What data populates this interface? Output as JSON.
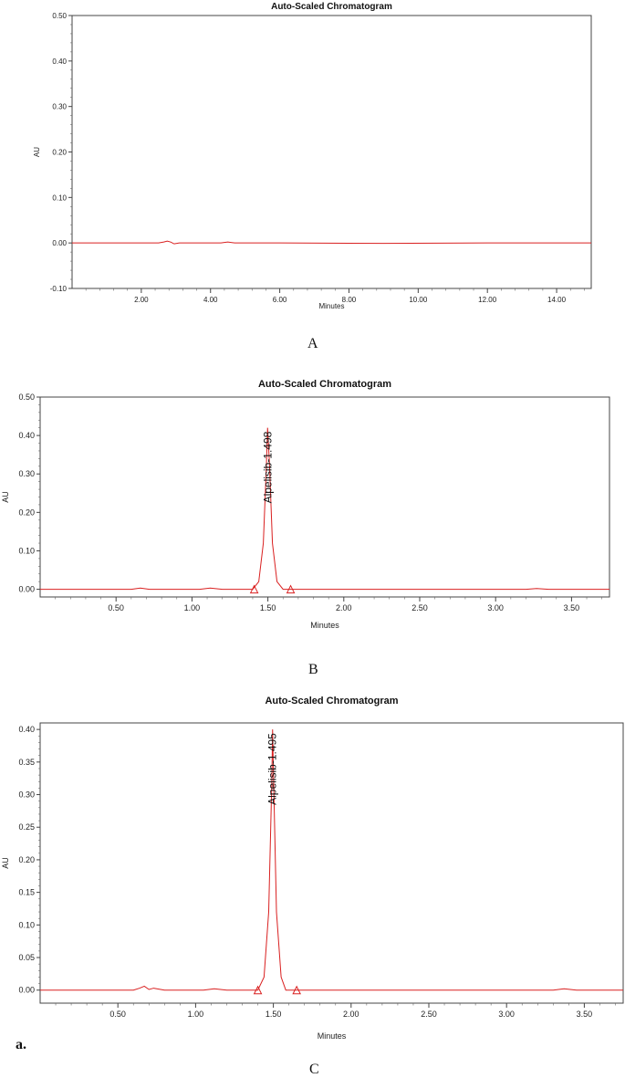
{
  "panels": [
    {
      "caption": "A"
    },
    {
      "caption": "B"
    },
    {
      "caption": "C"
    }
  ],
  "page_note": "a.",
  "chart_data": [
    {
      "type": "line",
      "title": "Auto-Scaled Chromatogram",
      "xlabel": "Minutes",
      "ylabel": "AU",
      "xlim": [
        0,
        15.0
      ],
      "ylim": [
        -0.1,
        0.5
      ],
      "xticks": [
        2,
        4,
        6,
        8,
        10,
        12,
        14
      ],
      "xtick_labels": [
        "2.00",
        "4.00",
        "6.00",
        "8.00",
        "10.00",
        "12.00",
        "14.00"
      ],
      "yticks": [
        -0.1,
        0.0,
        0.1,
        0.2,
        0.3,
        0.4,
        0.5
      ],
      "ytick_labels": [
        "-0.10",
        "0.00",
        "0.10",
        "0.20",
        "0.30",
        "0.40",
        "0.50"
      ],
      "line_color": "#d92020",
      "series": [
        {
          "x": [
            0,
            2.5,
            2.65,
            2.75,
            2.85,
            2.95,
            3.1,
            4.3,
            4.5,
            4.7,
            6,
            9,
            12,
            15
          ],
          "y": [
            0,
            0,
            0.002,
            0.004,
            0.002,
            -0.002,
            0,
            0,
            0.002,
            0,
            0,
            -0.001,
            0,
            0
          ]
        }
      ],
      "peak_labels": [],
      "baseline_markers": []
    },
    {
      "type": "line",
      "title": "Auto-Scaled Chromatogram",
      "xlabel": "Minutes",
      "ylabel": "AU",
      "xlim": [
        0,
        3.75
      ],
      "ylim": [
        -0.02,
        0.5
      ],
      "xticks": [
        0.5,
        1.0,
        1.5,
        2.0,
        2.5,
        3.0,
        3.5
      ],
      "xtick_labels": [
        "0.50",
        "1.00",
        "1.50",
        "2.00",
        "2.50",
        "3.00",
        "3.50"
      ],
      "yticks": [
        0.0,
        0.1,
        0.2,
        0.3,
        0.4,
        0.5
      ],
      "ytick_labels": [
        "0.00",
        "0.10",
        "0.20",
        "0.30",
        "0.40",
        "0.50"
      ],
      "line_color": "#d92020",
      "series": [
        {
          "x": [
            0,
            0.6,
            0.66,
            0.72,
            0.8,
            1.05,
            1.12,
            1.2,
            1.4,
            1.44,
            1.47,
            1.49,
            1.498,
            1.51,
            1.53,
            1.56,
            1.6,
            1.7,
            2.5,
            3.2,
            3.27,
            3.35,
            3.75
          ],
          "y": [
            0,
            0,
            0.003,
            0,
            0,
            0,
            0.003,
            0,
            0,
            0.02,
            0.12,
            0.32,
            0.42,
            0.33,
            0.12,
            0.02,
            0,
            0,
            0,
            0,
            0.002,
            0,
            0
          ]
        }
      ],
      "peak_labels": [
        {
          "text": "Alpelisib-1.498",
          "x": 1.498,
          "y": 0.42
        }
      ],
      "baseline_markers": [
        1.41,
        1.65
      ]
    },
    {
      "type": "line",
      "title": "Auto-Scaled Chromatogram",
      "xlabel": "Minutes",
      "ylabel": "AU",
      "xlim": [
        0,
        3.75
      ],
      "ylim": [
        -0.02,
        0.41
      ],
      "xticks": [
        0.5,
        1.0,
        1.5,
        2.0,
        2.5,
        3.0,
        3.5
      ],
      "xtick_labels": [
        "0.50",
        "1.00",
        "1.50",
        "2.00",
        "2.50",
        "3.00",
        "3.50"
      ],
      "yticks": [
        0.0,
        0.05,
        0.1,
        0.15,
        0.2,
        0.25,
        0.3,
        0.35,
        0.4
      ],
      "ytick_labels": [
        "0.00",
        "0.05",
        "0.10",
        "0.15",
        "0.20",
        "0.25",
        "0.30",
        "0.35",
        "0.40"
      ],
      "line_color": "#d92020",
      "series": [
        {
          "x": [
            0,
            0.6,
            0.64,
            0.67,
            0.7,
            0.73,
            0.8,
            1.05,
            1.12,
            1.2,
            1.4,
            1.44,
            1.47,
            1.49,
            1.495,
            1.5,
            1.52,
            1.55,
            1.58,
            1.7,
            2.5,
            3.3,
            3.37,
            3.45,
            3.75
          ],
          "y": [
            0,
            0,
            0.003,
            0.006,
            0.001,
            0.003,
            0,
            0,
            0.002,
            0,
            0,
            0.02,
            0.12,
            0.32,
            0.4,
            0.34,
            0.12,
            0.02,
            0,
            0,
            0,
            0,
            0.002,
            0,
            0
          ]
        }
      ],
      "peak_labels": [
        {
          "text": "Alpelisib-1.495",
          "x": 1.495,
          "y": 0.4
        }
      ],
      "baseline_markers": [
        1.4,
        1.65
      ]
    }
  ]
}
